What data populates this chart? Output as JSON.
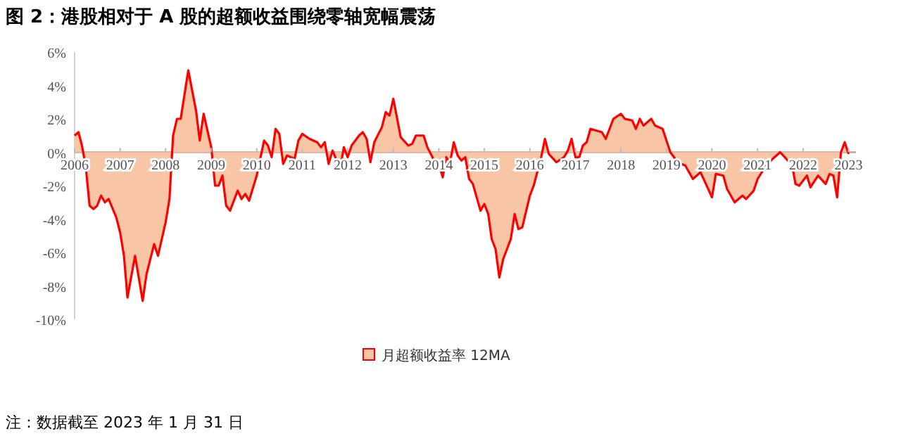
{
  "chart_data": {
    "type": "area",
    "title": "图 2：港股相对于 A 股的超额收益围绕零轴宽幅震荡",
    "annotations": [
      "注：数据截至 2023 年 1 月 31 日"
    ],
    "x": [
      "2006-01",
      "2006-02",
      "2006-03",
      "2006-04",
      "2006-05",
      "2006-06",
      "2006-07",
      "2006-08",
      "2006-09",
      "2006-10",
      "2006-12",
      "2007-01",
      "2007-02",
      "2007-03",
      "2007-05",
      "2007-07",
      "2007-08",
      "2007-10",
      "2007-11",
      "2008-01",
      "2008-02",
      "2008-03",
      "2008-04",
      "2008-05",
      "2008-07",
      "2008-09",
      "2008-10",
      "2008-11",
      "2009-01",
      "2009-02",
      "2009-03",
      "2009-04",
      "2009-05",
      "2009-06",
      "2009-08",
      "2009-09",
      "2009-10",
      "2009-11",
      "2010-01",
      "2010-02",
      "2010-03",
      "2010-04",
      "2010-05",
      "2010-06",
      "2010-07",
      "2010-08",
      "2010-09",
      "2010-11",
      "2010-12",
      "2011-01",
      "2011-03",
      "2011-05",
      "2011-06",
      "2011-07",
      "2011-08",
      "2011-09",
      "2011-11",
      "2011-12",
      "2012-01",
      "2012-02",
      "2012-04",
      "2012-05",
      "2012-06",
      "2012-07",
      "2012-08",
      "2012-10",
      "2012-11",
      "2012-12",
      "2013-01",
      "2013-02",
      "2013-03",
      "2013-05",
      "2013-06",
      "2013-07",
      "2013-09",
      "2013-10",
      "2013-12",
      "2014-01",
      "2014-02",
      "2014-03",
      "2014-04",
      "2014-05",
      "2014-06",
      "2014-07",
      "2014-08",
      "2014-09",
      "2014-10",
      "2014-12",
      "2015-01",
      "2015-02",
      "2015-03",
      "2015-04",
      "2015-05",
      "2015-06",
      "2015-08",
      "2015-09",
      "2015-10",
      "2015-11",
      "2016-01",
      "2016-02",
      "2016-04",
      "2016-05",
      "2016-06",
      "2016-08",
      "2016-10",
      "2016-11",
      "2016-12",
      "2017-01",
      "2017-02",
      "2017-03",
      "2017-04",
      "2017-05",
      "2017-08",
      "2017-09",
      "2017-11",
      "2018-01",
      "2018-02",
      "2018-04",
      "2018-05",
      "2018-06",
      "2018-07",
      "2018-09",
      "2018-10",
      "2018-12",
      "2019-02",
      "2019-04",
      "2019-06",
      "2019-08",
      "2019-10",
      "2019-11",
      "2020-01",
      "2020-02",
      "2020-04",
      "2020-05",
      "2020-07",
      "2020-09",
      "2020-10",
      "2020-12",
      "2021-01",
      "2021-03",
      "2021-05",
      "2021-07",
      "2021-09",
      "2021-10",
      "2021-11",
      "2021-12",
      "2022-02",
      "2022-03",
      "2022-05",
      "2022-07",
      "2022-08",
      "2022-09",
      "2022-10",
      "2022-11",
      "2022-12",
      "2023-01"
    ],
    "series": [
      {
        "name": "月超额收益率 12MA",
        "color": "#ff0000",
        "values": [
          1.0,
          1.2,
          0.4,
          -0.9,
          -3.2,
          -3.4,
          -3.2,
          -2.6,
          -3.0,
          -2.8,
          -3.9,
          -4.8,
          -6.2,
          -8.7,
          -6.2,
          -8.9,
          -7.3,
          -5.5,
          -6.2,
          -4.2,
          -2.8,
          1.0,
          2.0,
          2.0,
          4.9,
          2.5,
          0.7,
          2.3,
          0.3,
          -2.0,
          -2.0,
          -1.4,
          -3.2,
          -3.5,
          -2.3,
          -2.8,
          -2.5,
          -2.9,
          -1.4,
          -0.3,
          0.7,
          0.4,
          -0.3,
          1.4,
          1.1,
          -0.7,
          -0.2,
          -0.4,
          0.7,
          1.1,
          0.8,
          0.6,
          0.3,
          0.6,
          -0.7,
          0.1,
          -1.0,
          0.3,
          -0.3,
          0.4,
          1.0,
          1.2,
          0.8,
          -0.6,
          0.6,
          1.5,
          2.4,
          2.2,
          3.2,
          2.0,
          0.9,
          0.4,
          0.5,
          1.0,
          1.0,
          0.3,
          -0.6,
          -0.7,
          -1.5,
          -0.3,
          -0.6,
          0.6,
          -0.2,
          -0.5,
          -0.3,
          -1.6,
          -1.9,
          -3.5,
          -3.1,
          -3.7,
          -5.2,
          -5.8,
          -7.5,
          -6.4,
          -5.2,
          -3.7,
          -4.6,
          -4.5,
          -2.6,
          -2.0,
          -0.3,
          0.8,
          -0.1,
          -0.6,
          -0.3,
          0.1,
          0.8,
          -0.3,
          -0.3,
          0.4,
          0.6,
          1.4,
          1.2,
          0.8,
          2.0,
          2.3,
          2.0,
          1.9,
          1.4,
          2.0,
          1.6,
          2.0,
          1.6,
          1.4,
          0.0,
          -0.6,
          -0.8,
          -1.6,
          -1.2,
          -1.7,
          -2.7,
          -1.3,
          -1.4,
          -2.2,
          -3.0,
          -2.6,
          -2.8,
          -2.3,
          -1.6,
          -0.9,
          -0.4,
          0.0,
          -0.5,
          -0.6,
          -1.9,
          -2.0,
          -1.4,
          -2.1,
          -1.4,
          -1.9,
          -1.3,
          -1.4,
          -2.7,
          0.0,
          0.6,
          -0.1
        ]
      }
    ],
    "xlim": [
      "2006-01",
      "2023-03"
    ],
    "xticks": [
      "2006",
      "2007",
      "2008",
      "2009",
      "2010",
      "2011",
      "2012",
      "2013",
      "2014",
      "2015",
      "2016",
      "2017",
      "2018",
      "2019",
      "2020",
      "2021",
      "2022",
      "2023"
    ],
    "ylim": [
      -10,
      6
    ],
    "yticks": [
      {
        "value": -10,
        "label": "-10%"
      },
      {
        "value": -8,
        "label": "-8%"
      },
      {
        "value": -6,
        "label": "-6%"
      },
      {
        "value": -4,
        "label": "-4%"
      },
      {
        "value": -2,
        "label": "-2%"
      },
      {
        "value": 0,
        "label": "0%"
      },
      {
        "value": 2,
        "label": "2%"
      },
      {
        "value": 4,
        "label": "4%"
      },
      {
        "value": 6,
        "label": "6%"
      }
    ],
    "legend": "bottom"
  }
}
